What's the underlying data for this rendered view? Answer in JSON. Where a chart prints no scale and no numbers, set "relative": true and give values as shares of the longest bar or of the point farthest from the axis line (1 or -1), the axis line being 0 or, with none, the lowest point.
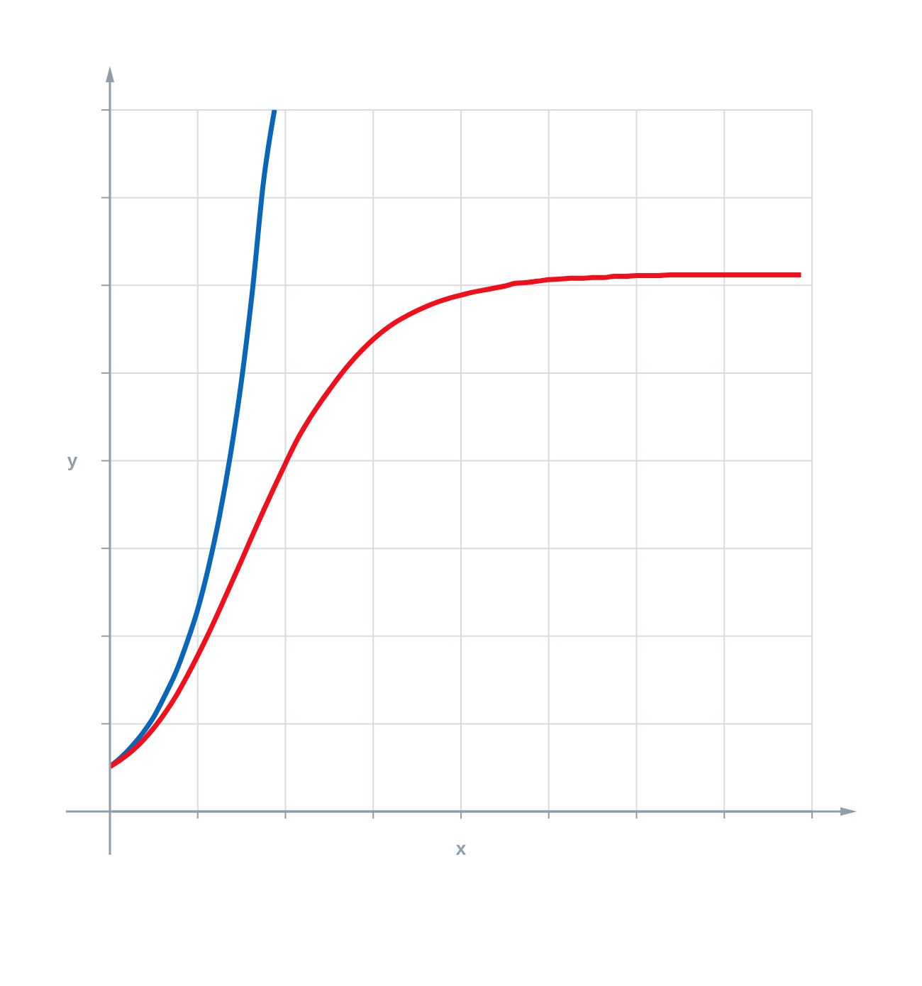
{
  "chart_data": {
    "type": "line",
    "xlabel": "x",
    "ylabel": "y",
    "relative": true,
    "grid": true,
    "marker": "none",
    "categories": [
      null,
      null,
      null,
      null,
      null,
      null,
      null,
      null,
      null,
      null,
      null,
      null,
      null,
      null,
      null,
      null,
      null,
      null,
      null,
      null,
      null,
      null,
      null,
      null,
      null,
      null,
      null,
      null,
      null,
      null,
      null,
      null,
      null,
      null,
      null,
      null,
      null,
      null,
      null,
      null,
      null,
      null,
      null,
      null,
      null,
      null,
      null,
      null,
      null,
      null,
      null,
      null,
      null,
      null,
      null,
      null,
      null,
      null,
      null,
      null,
      null,
      null,
      null,
      null,
      null
    ],
    "series": [
      {
        "color": "#0a66b8",
        "values": [
          0.064,
          0.077,
          0.093,
          0.112,
          0.135,
          0.165,
          0.198,
          0.24,
          0.288,
          0.349,
          0.422,
          0.51,
          0.615,
          0.744,
          0.898,
          1,
          null,
          null,
          null,
          null,
          null,
          null,
          null,
          null,
          null,
          null,
          null,
          null,
          null,
          null,
          null,
          null,
          null,
          null,
          null,
          null,
          null,
          null,
          null,
          null,
          null,
          null,
          null,
          null,
          null,
          null,
          null,
          null,
          null,
          null,
          null,
          null,
          null,
          null,
          null,
          null,
          null,
          null,
          null,
          null,
          null,
          null,
          null,
          null,
          null
        ]
      },
      {
        "color": "#f0101c",
        "values": [
          0.064,
          0.074,
          0.086,
          0.101,
          0.119,
          0.14,
          0.164,
          0.192,
          0.222,
          0.254,
          0.288,
          0.323,
          0.358,
          0.394,
          0.429,
          0.463,
          0.496,
          0.528,
          0.555,
          0.579,
          0.601,
          0.622,
          0.641,
          0.658,
          0.673,
          0.686,
          0.697,
          0.706,
          0.714,
          0.721,
          0.727,
          0.732,
          0.736,
          0.74,
          0.743,
          0.746,
          0.749,
          0.753,
          0.754,
          0.756,
          0.758,
          0.759,
          0.76,
          0.76,
          0.761,
          0.761,
          0.763,
          0.763,
          0.764,
          0.764,
          0.764,
          0.765,
          0.765,
          0.765,
          0.765,
          0.765,
          0.765,
          0.765,
          0.765,
          0.765,
          0.765,
          0.765,
          0.765,
          0.765,
          null
        ]
      }
    ]
  }
}
